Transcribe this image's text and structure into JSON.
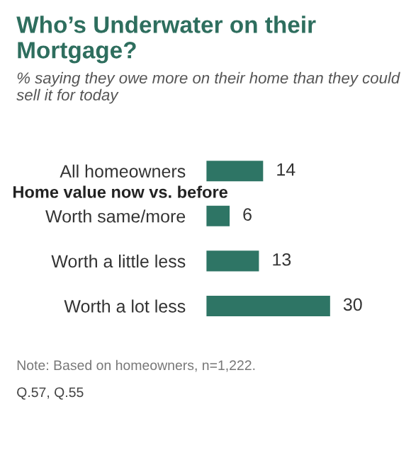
{
  "chart_data": {
    "type": "bar",
    "orientation": "horizontal",
    "title": "Who’s Underwater on their Mortgage?",
    "subtitle": "% saying they owe more on their home than they could sell it for today",
    "categories": [
      "All homeowners",
      "Worth same/more",
      "Worth a little less",
      "Worth a lot less"
    ],
    "values": [
      14,
      6,
      13,
      30
    ],
    "color": "#2e7565",
    "data_labels": true,
    "grid": false,
    "legend": false,
    "tick_labels": "y",
    "annotations": [
      "Home value now vs. before",
      "Note: Based on homeowners, n=1,222.",
      "Q.57, Q.55"
    ]
  }
}
